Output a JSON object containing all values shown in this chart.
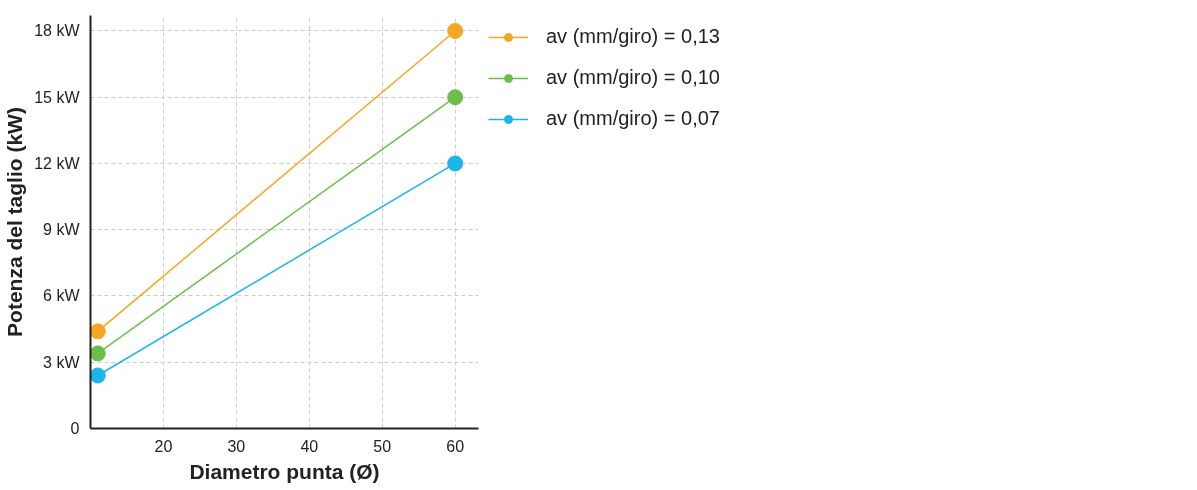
{
  "chart_data": {
    "type": "line",
    "xlabel": "Diametro punta (Ø)",
    "ylabel": "Potenza del taglio (kW)",
    "x": [
      11,
      60
    ],
    "series": [
      {
        "name": "av (mm/giro) = 0,13",
        "color": "#f5a623",
        "values": [
          4.4,
          18
        ]
      },
      {
        "name": "av (mm/giro) = 0,10",
        "color": "#6abf4b",
        "values": [
          3.4,
          15
        ]
      },
      {
        "name": "av (mm/giro) = 0,07",
        "color": "#1ab5ea",
        "values": [
          2.4,
          12
        ]
      }
    ],
    "xlim": [
      10,
      63.2
    ],
    "ylim": [
      0,
      18.7
    ],
    "xticks": [
      20,
      30,
      40,
      50,
      60
    ],
    "yticks": [
      0,
      {
        "value": 3,
        "label": "3 kW"
      },
      {
        "value": 6,
        "label": "6 kW"
      },
      {
        "value": 9,
        "label": "9 kW"
      },
      {
        "value": 12,
        "label": "12 kW"
      },
      {
        "value": 15,
        "label": "15 kW"
      },
      {
        "value": 18,
        "label": "18 kW"
      }
    ],
    "grid": true,
    "legend": "top right",
    "marker": "circle",
    "line_style": "solid"
  }
}
